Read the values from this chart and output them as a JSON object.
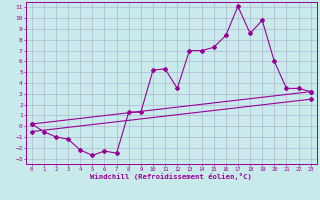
{
  "xlabel": "Windchill (Refroidissement éolien,°C)",
  "bg_color": "#c8eaea",
  "grid_color": "#aaaacc",
  "line_color": "#990099",
  "xlim": [
    -0.5,
    23.5
  ],
  "ylim": [
    -3.5,
    11.5
  ],
  "xticks": [
    0,
    1,
    2,
    3,
    4,
    5,
    6,
    7,
    8,
    9,
    10,
    11,
    12,
    13,
    14,
    15,
    16,
    17,
    18,
    19,
    20,
    21,
    22,
    23
  ],
  "yticks": [
    -3,
    -2,
    -1,
    0,
    1,
    2,
    3,
    4,
    5,
    6,
    7,
    8,
    9,
    10,
    11
  ],
  "main_x": [
    0,
    1,
    2,
    3,
    4,
    5,
    6,
    7,
    8,
    9,
    10,
    11,
    12,
    13,
    14,
    15,
    16,
    17,
    18,
    19,
    20,
    21,
    22,
    23
  ],
  "main_y": [
    0.2,
    -0.5,
    -1.0,
    -1.2,
    -2.2,
    -2.7,
    -2.3,
    -2.5,
    1.3,
    1.3,
    5.2,
    5.3,
    3.5,
    7.0,
    7.0,
    7.3,
    8.4,
    11.1,
    8.6,
    9.8,
    6.0,
    3.5,
    3.5,
    3.2
  ],
  "line2_x": [
    0,
    23
  ],
  "line2_y": [
    0.2,
    3.2
  ],
  "line3_x": [
    0,
    23
  ],
  "line3_y": [
    -0.5,
    2.5
  ]
}
